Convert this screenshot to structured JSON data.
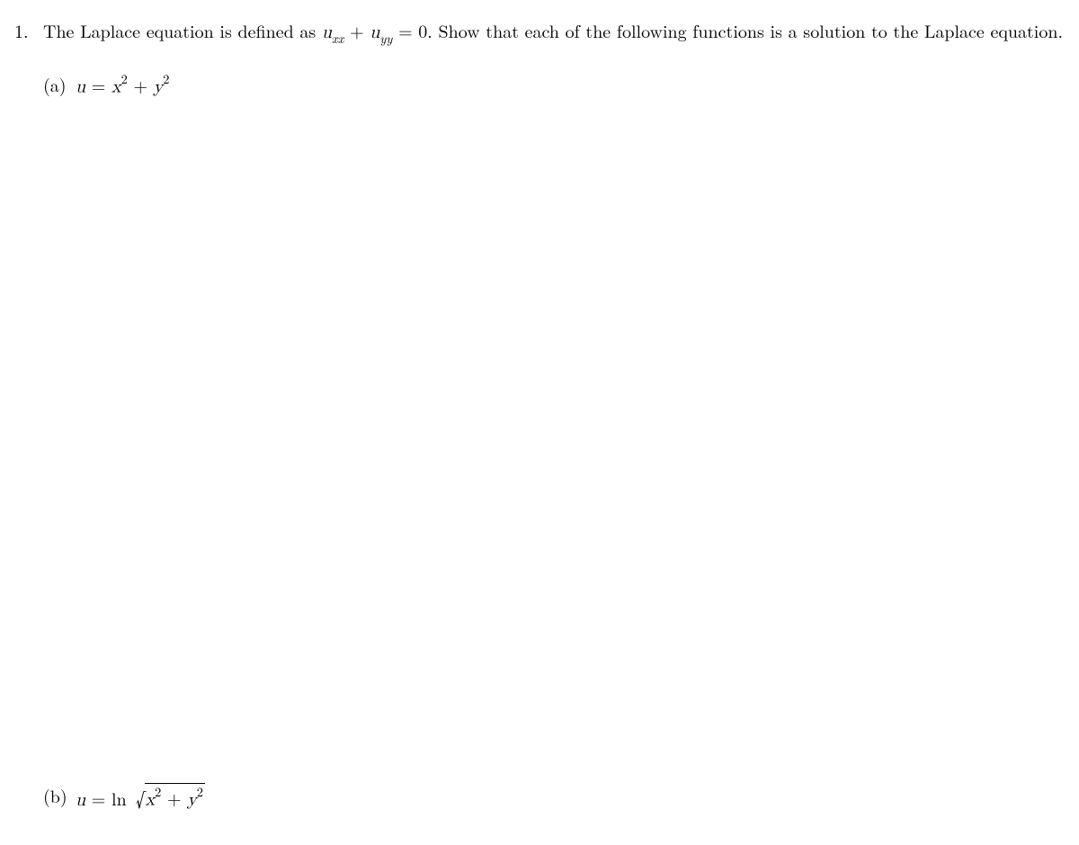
{
  "problem": {
    "number": "1.",
    "stem_prefix": "The Laplace equation is defined as ",
    "eq_var": "u",
    "eq_sub1": "xx",
    "eq_plus": " + ",
    "eq_sub2": "yy",
    "eq_rhs": " = 0. ",
    "stem_suffix": "Show that each of the following functions is a solution to the Laplace equation."
  },
  "partA": {
    "label": "(a)",
    "u": "u",
    "eq": " = ",
    "x": "x",
    "exp1": "2",
    "plus": " + ",
    "y": "y",
    "exp2": "2"
  },
  "partB": {
    "label": "(b)",
    "u": "u",
    "eq": " = ",
    "ln": "ln",
    "sqrt": "√",
    "x": "x",
    "exp1": "2",
    "plus": " + ",
    "y": "y",
    "exp2": "2"
  }
}
